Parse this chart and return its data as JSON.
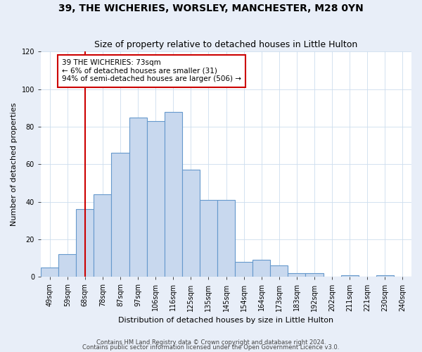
{
  "title": "39, THE WICHERIES, WORSLEY, MANCHESTER, M28 0YN",
  "subtitle": "Size of property relative to detached houses in Little Hulton",
  "xlabel": "Distribution of detached houses by size in Little Hulton",
  "ylabel": "Number of detached properties",
  "footer1": "Contains HM Land Registry data © Crown copyright and database right 2024.",
  "footer2": "Contains public sector information licensed under the Open Government Licence v3.0.",
  "bar_labels": [
    "49sqm",
    "59sqm",
    "68sqm",
    "78sqm",
    "87sqm",
    "97sqm",
    "106sqm",
    "116sqm",
    "125sqm",
    "135sqm",
    "145sqm",
    "154sqm",
    "164sqm",
    "173sqm",
    "183sqm",
    "192sqm",
    "202sqm",
    "211sqm",
    "221sqm",
    "230sqm",
    "240sqm"
  ],
  "bar_values": [
    5,
    12,
    36,
    44,
    66,
    85,
    83,
    88,
    57,
    41,
    41,
    8,
    9,
    6,
    2,
    2,
    0,
    1,
    0,
    1,
    0
  ],
  "bar_color": "#c8d8ee",
  "bar_edge_color": "#6699cc",
  "annotation_title": "39 THE WICHERIES: 73sqm",
  "annotation_line1": "← 6% of detached houses are smaller (31)",
  "annotation_line2": "94% of semi-detached houses are larger (506) →",
  "annotation_box_color": "#ffffff",
  "annotation_box_edge_color": "#cc0000",
  "ref_line_color": "#cc0000",
  "ylim": [
    0,
    120
  ],
  "yticks": [
    0,
    20,
    40,
    60,
    80,
    100,
    120
  ],
  "background_color": "#e8eef8",
  "plot_background_color": "#ffffff",
  "grid_color": "#ccddee",
  "title_fontsize": 10,
  "subtitle_fontsize": 9,
  "xlabel_fontsize": 8,
  "ylabel_fontsize": 8,
  "tick_fontsize": 7,
  "footer_fontsize": 6
}
